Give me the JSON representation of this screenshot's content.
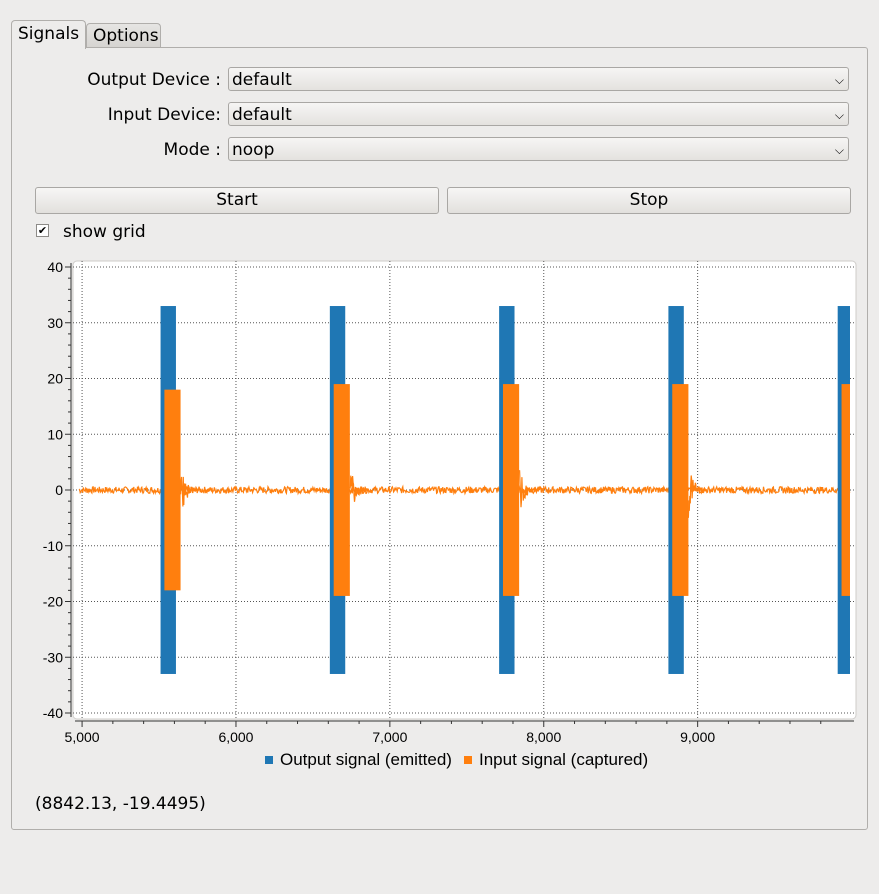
{
  "tabs": [
    {
      "label": "Signals",
      "active": true
    },
    {
      "label": "Options",
      "active": false
    }
  ],
  "form": {
    "output_device_label": "Output Device :",
    "output_device_value": "default",
    "input_device_label": "Input Device:",
    "input_device_value": "default",
    "mode_label": "Mode :",
    "mode_value": "noop"
  },
  "buttons": {
    "start": "Start",
    "stop": "Stop"
  },
  "show_grid": {
    "label": "show grid",
    "checked": true
  },
  "chart_data": {
    "type": "line",
    "title": "",
    "xlabel": "",
    "ylabel": "",
    "xlim": [
      4980,
      9990
    ],
    "ylim": [
      -40,
      40
    ],
    "x_ticks": [
      "5,000",
      "6,000",
      "7,000",
      "8,000",
      "9,000"
    ],
    "y_ticks": [
      "40",
      "30",
      "20",
      "10",
      "0",
      "-10",
      "-20",
      "-30",
      "-40"
    ],
    "grid": true,
    "legend_position": "bottom",
    "series": [
      {
        "name": "Output signal (emitted)",
        "color": "#1f77b4",
        "bursts": [
          {
            "start": 5510,
            "end": 5610,
            "amplitude": 33
          },
          {
            "start": 6610,
            "end": 6710,
            "amplitude": 33
          },
          {
            "start": 7710,
            "end": 7810,
            "amplitude": 33
          },
          {
            "start": 8810,
            "end": 8910,
            "amplitude": 33
          },
          {
            "start": 9910,
            "end": 9990,
            "amplitude": 33
          }
        ]
      },
      {
        "name": "Input signal (captured)",
        "color": "#ff7f0e",
        "bursts": [
          {
            "start": 5535,
            "end": 5640,
            "amplitude": 18
          },
          {
            "start": 6635,
            "end": 6740,
            "amplitude": 19
          },
          {
            "start": 7735,
            "end": 7840,
            "amplitude": 19
          },
          {
            "start": 8835,
            "end": 8940,
            "amplitude": 19
          },
          {
            "start": 9935,
            "end": 9990,
            "amplitude": 19
          }
        ],
        "noise_amplitude": 0.6
      }
    ]
  },
  "cursor_readout": "(8842.13, -19.4495)"
}
